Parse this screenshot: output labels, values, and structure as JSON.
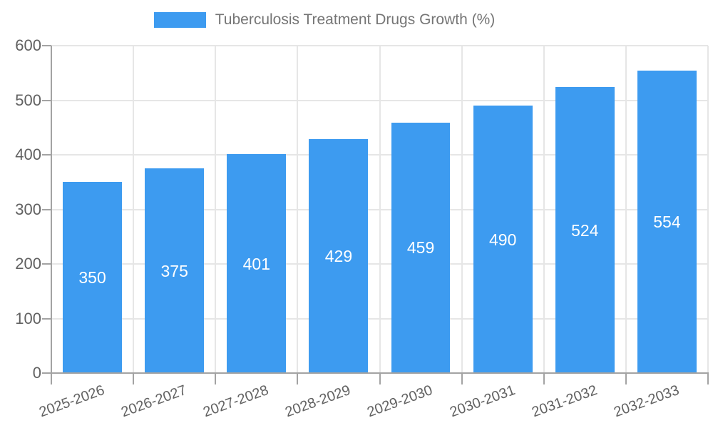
{
  "legend": {
    "label": "Tuberculosis Treatment Drugs Growth (%)"
  },
  "chart_data": {
    "type": "bar",
    "title": "Tuberculosis Treatment Drugs Growth (%)",
    "categories": [
      "2025-2026",
      "2026-2027",
      "2027-2028",
      "2028-2029",
      "2029-2030",
      "2030-2031",
      "2031-2032",
      "2032-2033"
    ],
    "values": [
      350,
      375,
      401,
      429,
      459,
      490,
      524,
      554
    ],
    "xlabel": "",
    "ylabel": "",
    "ylim": [
      0,
      600
    ],
    "yticks": [
      0,
      100,
      200,
      300,
      400,
      500,
      600
    ],
    "grid": true,
    "legend_position": "top",
    "bar_color": "#3d9bf0",
    "value_label_color": "#ffffff"
  },
  "colors": {
    "bar": "#3d9bf0",
    "grid": "#e6e6e6",
    "axis": "#a3a3a3",
    "tick_text": "#616161",
    "title_text": "#757575",
    "value_label": "#ffffff",
    "background": "#ffffff"
  }
}
